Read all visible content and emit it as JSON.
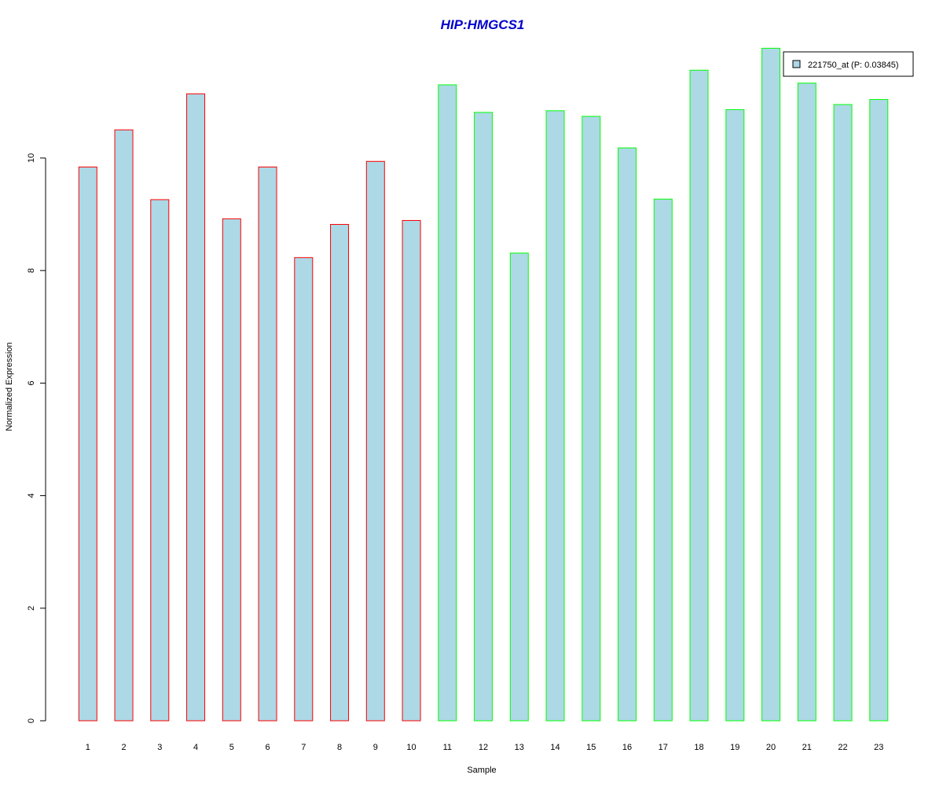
{
  "chart_data": {
    "type": "bar",
    "title": "HIP:HMGCS1",
    "xlabel": "Sample",
    "ylabel": "Normalized Expression",
    "categories": [
      "1",
      "2",
      "3",
      "4",
      "5",
      "6",
      "7",
      "8",
      "9",
      "10",
      "11",
      "12",
      "13",
      "14",
      "15",
      "16",
      "17",
      "18",
      "19",
      "20",
      "21",
      "22",
      "23"
    ],
    "series": [
      {
        "name": "221750_at (P: 0.03845)",
        "values": [
          9.84,
          10.5,
          9.26,
          11.14,
          8.92,
          9.84,
          8.23,
          8.82,
          9.94,
          8.89,
          11.3,
          10.81,
          8.31,
          10.84,
          10.74,
          10.18,
          9.27,
          11.56,
          10.86,
          11.95,
          11.33,
          10.95,
          11.04
        ]
      }
    ],
    "bar_group": [
      "red",
      "red",
      "red",
      "red",
      "red",
      "red",
      "red",
      "red",
      "red",
      "red",
      "green",
      "green",
      "green",
      "green",
      "green",
      "green",
      "green",
      "green",
      "green",
      "green",
      "green",
      "green",
      "green"
    ],
    "yticks": [
      0,
      2,
      4,
      6,
      8,
      10
    ],
    "ylim": [
      0,
      12
    ],
    "grid": false,
    "legend_position": "top-right",
    "colors": {
      "bar_fill": "#add8e6",
      "group_red": "#ff0000",
      "group_green": "#00ff00",
      "title": "#0000cd",
      "axis": "#000000"
    }
  }
}
